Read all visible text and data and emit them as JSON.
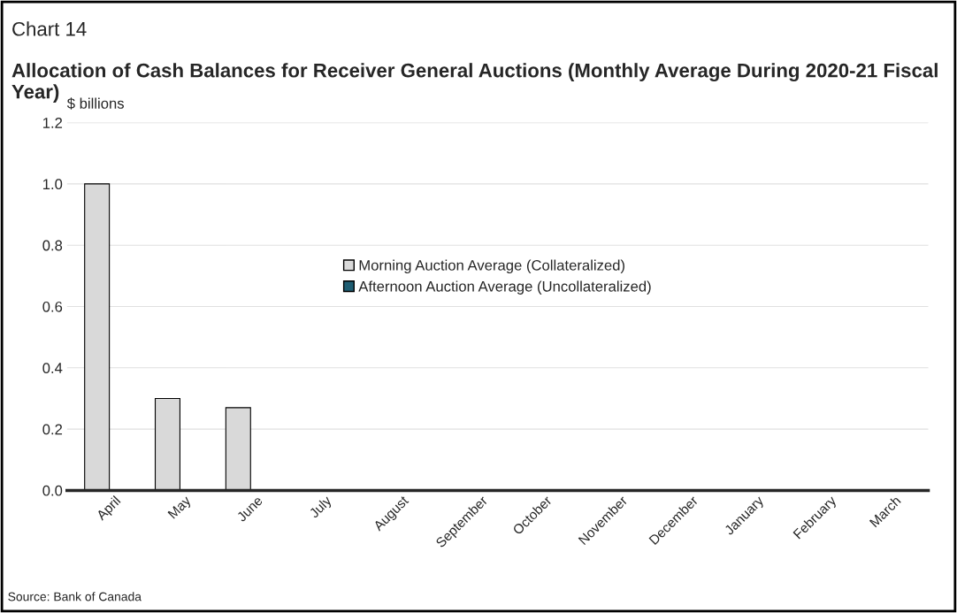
{
  "chart_data": {
    "type": "bar",
    "title": "Chart 14",
    "subtitle": "Allocation of Cash Balances for Receiver General Auctions (Monthly Average During 2020-21 Fiscal Year)",
    "ylabel": "$ billions",
    "categories": [
      "April",
      "May",
      "June",
      "July",
      "August",
      "September",
      "October",
      "November",
      "December",
      "January",
      "February",
      "March"
    ],
    "series": [
      {
        "name": "Morning Auction Average (Collateralized)",
        "color": "#d9d9d9",
        "values": [
          1.0,
          0.3,
          0.27,
          null,
          null,
          null,
          null,
          null,
          null,
          null,
          null,
          null
        ]
      },
      {
        "name": "Afternoon Auction Average (Uncollateralized)",
        "color": "#1f5e73",
        "values": [
          null,
          null,
          null,
          null,
          null,
          null,
          null,
          null,
          null,
          null,
          null,
          null
        ]
      }
    ],
    "ylim": [
      0,
      1.2
    ],
    "yticks": [
      {
        "value": 0,
        "label": "0.0"
      },
      0.2,
      0.4,
      0.6,
      0.8,
      {
        "value": 1,
        "label": "1.0"
      },
      1.2
    ],
    "grid": "y",
    "legend": "center",
    "annotations": [
      "Source: Bank of Canada"
    ]
  }
}
